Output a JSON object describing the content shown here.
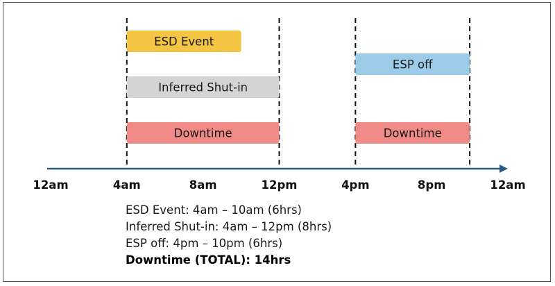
{
  "timeline": {
    "hours_min": 0,
    "hours_max": 24,
    "ticks": [
      {
        "hour": 0,
        "label": "12am"
      },
      {
        "hour": 4,
        "label": "4am"
      },
      {
        "hour": 8,
        "label": "8am"
      },
      {
        "hour": 12,
        "label": "12pm"
      },
      {
        "hour": 16,
        "label": "4pm"
      },
      {
        "hour": 20,
        "label": "8pm"
      },
      {
        "hour": 24,
        "label": "12am"
      }
    ],
    "divider_hours": [
      4,
      12,
      16,
      22
    ],
    "axis_color": "#2b5b84"
  },
  "bars": [
    {
      "id": "esd-event",
      "label": "ESD Event",
      "start": 4,
      "end": 10,
      "row": 0,
      "color": "#f4c542"
    },
    {
      "id": "inferred-shut-in",
      "label": "Inferred Shut-in",
      "start": 4,
      "end": 12,
      "row": 1,
      "color": "#d4d4d4"
    },
    {
      "id": "downtime-1",
      "label": "Downtime",
      "start": 4,
      "end": 12,
      "row": 2,
      "color": "#f08a86"
    },
    {
      "id": "esp-off",
      "label": "ESP off",
      "start": 16,
      "end": 22,
      "row": 0.5,
      "color": "#9bcbe6"
    },
    {
      "id": "downtime-2",
      "label": "Downtime",
      "start": 16,
      "end": 22,
      "row": 2,
      "color": "#f08a86"
    }
  ],
  "summary": {
    "lines": [
      "ESD Event: 4am – 10am (6hrs)",
      "Inferred Shut-in: 4am – 12pm (8hrs)",
      "ESP off: 4pm – 10pm (6hrs)"
    ],
    "total": "Downtime (TOTAL): 14hrs"
  }
}
